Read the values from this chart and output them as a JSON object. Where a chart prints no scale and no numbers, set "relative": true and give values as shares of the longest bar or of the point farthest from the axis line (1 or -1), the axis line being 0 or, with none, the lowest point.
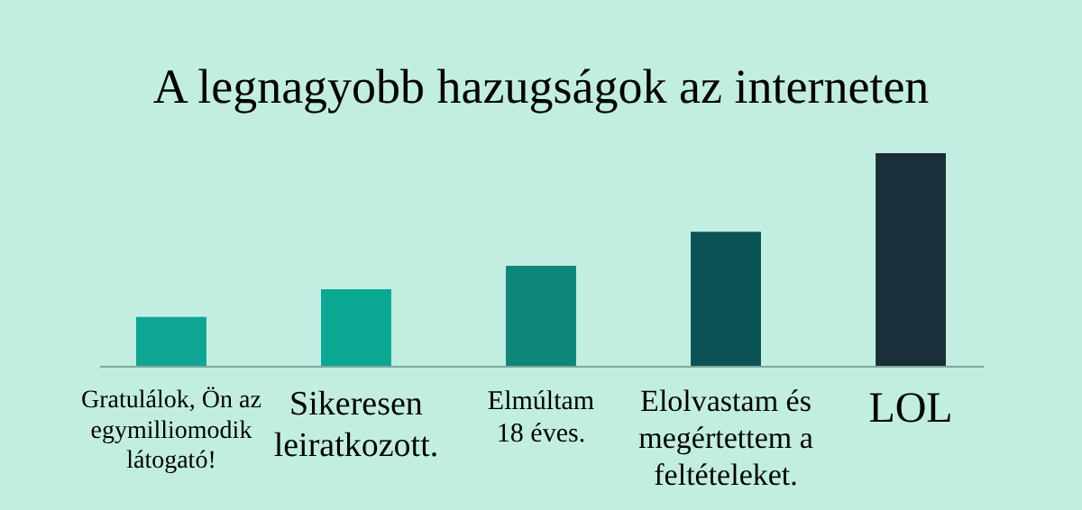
{
  "chart_data": {
    "type": "bar",
    "title": "A legnagyobb hazugságok az interneten",
    "categories": [
      "Gratulálok, Ön az egymilliomodik látogató!",
      "Sikeresen leiratkozott.",
      "Elmúltam 18 éves.",
      "Elolvastam és megértettem a feltételeket.",
      "LOL"
    ],
    "values": [
      0.23,
      0.36,
      0.47,
      0.63,
      1
    ],
    "colors": [
      "#0fa595",
      "#0aa892",
      "#0c877a",
      "#0a5256",
      "#1a2f3a"
    ],
    "relative": true
  }
}
